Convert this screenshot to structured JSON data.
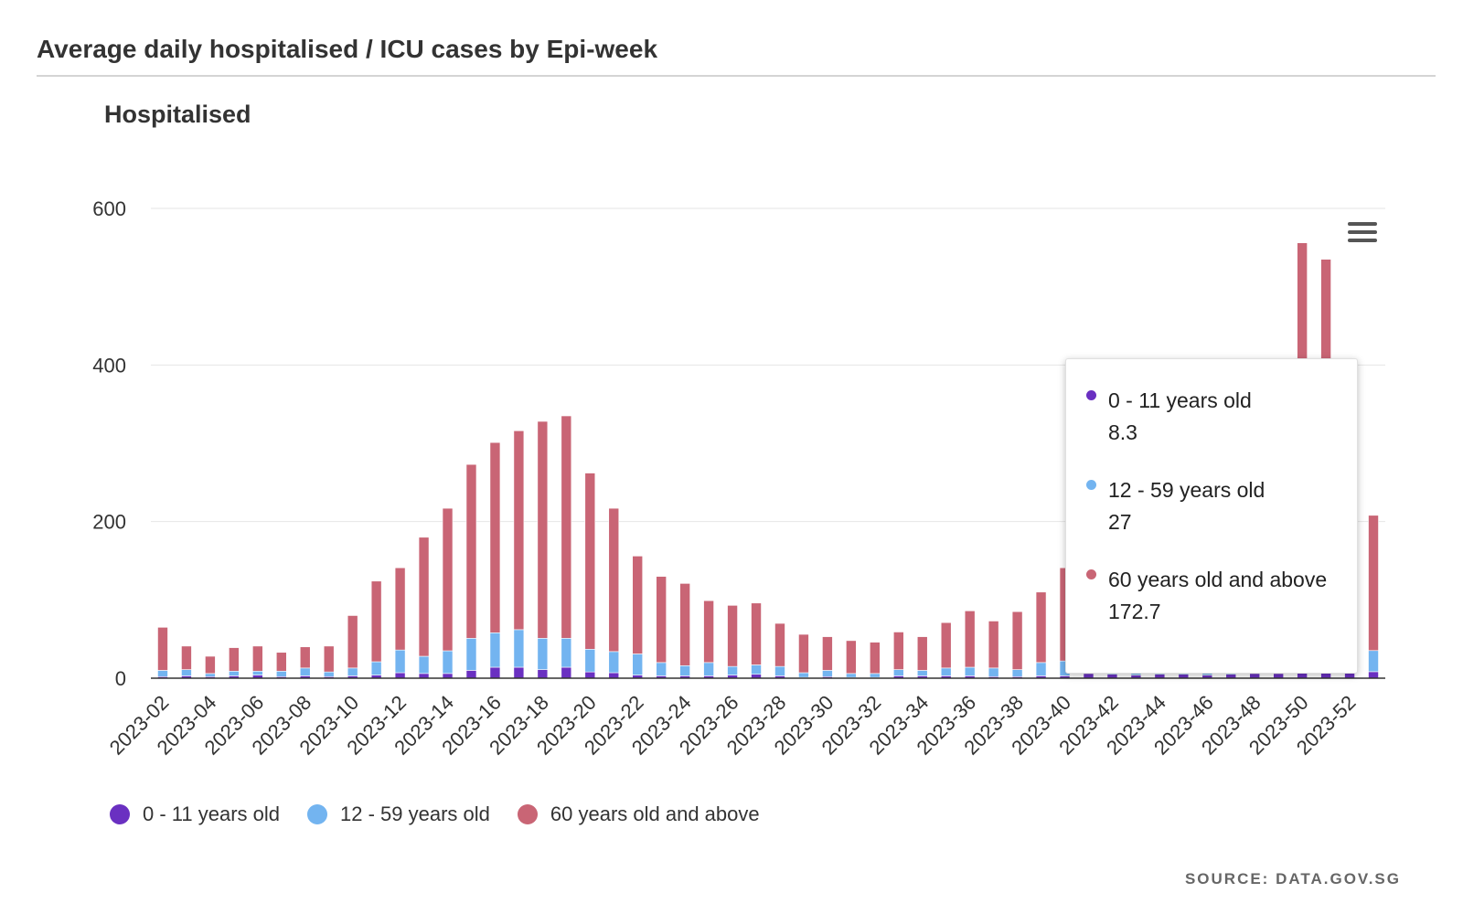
{
  "header": {
    "title": "Average daily hospitalised / ICU cases by Epi-week",
    "subtitle": "Hospitalised"
  },
  "menu": {
    "icon": "hamburger-menu-icon"
  },
  "tooltip": {
    "items": [
      {
        "label": "0 - 11 years old",
        "value": "8.3",
        "color": "#6a30c1"
      },
      {
        "label": "12 - 59 years old",
        "value": "27",
        "color": "#73b4f0"
      },
      {
        "label": "60 years old and above",
        "value": "172.7",
        "color": "#c96575"
      }
    ]
  },
  "source": "SOURCE: DATA.GOV.SG",
  "chart_data": {
    "type": "bar",
    "stacked": true,
    "ylim": [
      0,
      600
    ],
    "yticks": [
      0,
      200,
      400,
      600
    ],
    "grid": true,
    "legend_position": "bottom-left",
    "categories": [
      "2023-02",
      "2023-03",
      "2023-04",
      "2023-05",
      "2023-06",
      "2023-07",
      "2023-08",
      "2023-09",
      "2023-10",
      "2023-11",
      "2023-12",
      "2023-13",
      "2023-14",
      "2023-15",
      "2023-16",
      "2023-17",
      "2023-18",
      "2023-19",
      "2023-20",
      "2023-21",
      "2023-22",
      "2023-23",
      "2023-24",
      "2023-25",
      "2023-26",
      "2023-27",
      "2023-28",
      "2023-29",
      "2023-30",
      "2023-31",
      "2023-32",
      "2023-33",
      "2023-34",
      "2023-35",
      "2023-36",
      "2023-37",
      "2023-38",
      "2023-39",
      "2023-40",
      "2023-41",
      "2023-42",
      "2023-43",
      "2023-44",
      "2023-45",
      "2023-46",
      "2023-47",
      "2023-48",
      "2023-49",
      "2023-50",
      "2023-51",
      "2023-52",
      "2023-53"
    ],
    "tick_labels": [
      "2023-02",
      "2023-04",
      "2023-06",
      "2023-08",
      "2023-10",
      "2023-12",
      "2023-14",
      "2023-16",
      "2023-18",
      "2023-20",
      "2023-22",
      "2023-24",
      "2023-26",
      "2023-28",
      "2023-30",
      "2023-32",
      "2023-34",
      "2023-36",
      "2023-38",
      "2023-40",
      "2023-42",
      "2023-44",
      "2023-46",
      "2023-48",
      "2023-50",
      "2023-52"
    ],
    "series": [
      {
        "name": "0 - 11 years old",
        "color": "#6a30c1",
        "values": [
          2,
          3,
          2,
          3,
          4,
          2,
          3,
          2,
          3,
          4,
          7,
          6,
          6,
          10,
          14,
          14,
          11,
          14,
          8,
          7,
          4,
          3,
          3,
          3,
          4,
          5,
          3,
          1,
          2,
          1,
          1,
          3,
          3,
          3,
          3,
          2,
          2,
          3,
          3,
          6,
          5,
          4,
          5,
          5,
          4,
          5,
          6,
          6,
          9,
          10,
          9,
          8.3
        ]
      },
      {
        "name": "12 - 59 years old",
        "color": "#73b4f0",
        "values": [
          8,
          8,
          4,
          6,
          5,
          7,
          10,
          6,
          10,
          17,
          29,
          22,
          29,
          41,
          44,
          48,
          40,
          37,
          29,
          27,
          27,
          17,
          13,
          17,
          11,
          12,
          12,
          6,
          8,
          5,
          5,
          8,
          7,
          10,
          11,
          11,
          9,
          17,
          19,
          15,
          15,
          16,
          15,
          16,
          14,
          14,
          15,
          18,
          32,
          30,
          27,
          27
        ]
      },
      {
        "name": "60 years old and above",
        "color": "#c96575",
        "values": [
          55,
          30,
          22,
          30,
          32,
          24,
          27,
          33,
          67,
          103,
          105,
          152,
          182,
          222,
          243,
          254,
          277,
          284,
          225,
          183,
          125,
          110,
          105,
          79,
          78,
          79,
          55,
          49,
          43,
          42,
          40,
          48,
          43,
          58,
          72,
          60,
          74,
          90,
          119,
          130,
          140,
          150,
          155,
          165,
          175,
          190,
          210,
          250,
          515,
          495,
          190,
          172.7
        ]
      }
    ]
  }
}
